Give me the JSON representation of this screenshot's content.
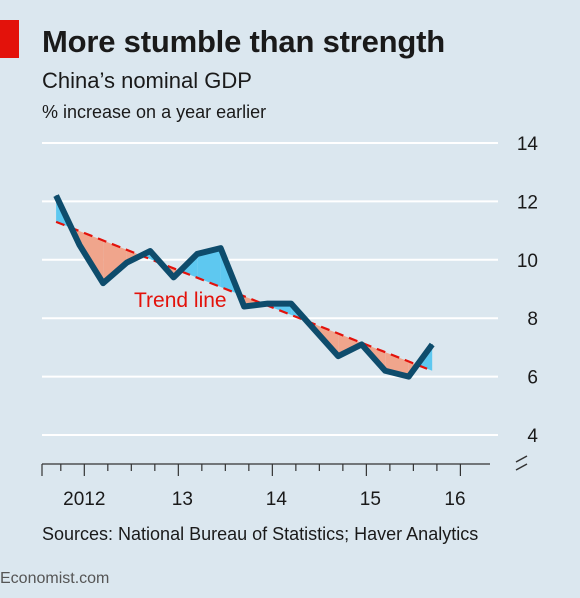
{
  "title": "More stumble than strength",
  "subtitle": "China’s nominal GDP",
  "units": "% increase on a year earlier",
  "source": "Sources: National Bureau of Statistics; Haver Analytics",
  "brand": "Economist.com",
  "colors": {
    "background": "#dbe7ef",
    "line": "#0e4c6c",
    "trend": "#e3120b",
    "above_trend_fill": "#5ec8f0",
    "below_trend_fill": "#f0a58c",
    "grid": "#ffffff",
    "accent": "#e3120b"
  },
  "chart_data": {
    "type": "line",
    "title": "More stumble than strength",
    "subtitle": "China’s nominal GDP",
    "ylabel": "% increase on a year earlier",
    "ylim": [
      4,
      14
    ],
    "yticks": [
      4,
      6,
      8,
      10,
      12,
      14
    ],
    "xlim": [
      2011.55,
      2016.4
    ],
    "xticks": [
      {
        "label": "2012",
        "x": 2012.0
      },
      {
        "label": "13",
        "x": 2013.0
      },
      {
        "label": "14",
        "x": 2014.0
      },
      {
        "label": "15",
        "x": 2015.0
      },
      {
        "label": "16",
        "x": 2015.9
      }
    ],
    "grid": true,
    "y_axis_side": "right",
    "y_axis_break": true,
    "series": [
      {
        "values": [
          {
            "x": 2011.7,
            "y": 12.2
          },
          {
            "x": 2011.95,
            "y": 10.5
          },
          {
            "x": 2012.2,
            "y": 9.2
          },
          {
            "x": 2012.45,
            "y": 9.9
          },
          {
            "x": 2012.7,
            "y": 10.3
          },
          {
            "x": 2012.95,
            "y": 9.4
          },
          {
            "x": 2013.2,
            "y": 10.2
          },
          {
            "x": 2013.45,
            "y": 10.4
          },
          {
            "x": 2013.7,
            "y": 8.4
          },
          {
            "x": 2013.95,
            "y": 8.5
          },
          {
            "x": 2014.2,
            "y": 8.5
          },
          {
            "x": 2014.45,
            "y": 7.6
          },
          {
            "x": 2014.7,
            "y": 6.7
          },
          {
            "x": 2014.95,
            "y": 7.1
          },
          {
            "x": 2015.2,
            "y": 6.2
          },
          {
            "x": 2015.45,
            "y": 6.0
          },
          {
            "x": 2015.7,
            "y": 7.1
          }
        ]
      }
    ],
    "trend": {
      "label": "Trend line",
      "start": {
        "x": 2011.7,
        "y": 11.3
      },
      "end": {
        "x": 2015.7,
        "y": 6.2
      }
    }
  }
}
